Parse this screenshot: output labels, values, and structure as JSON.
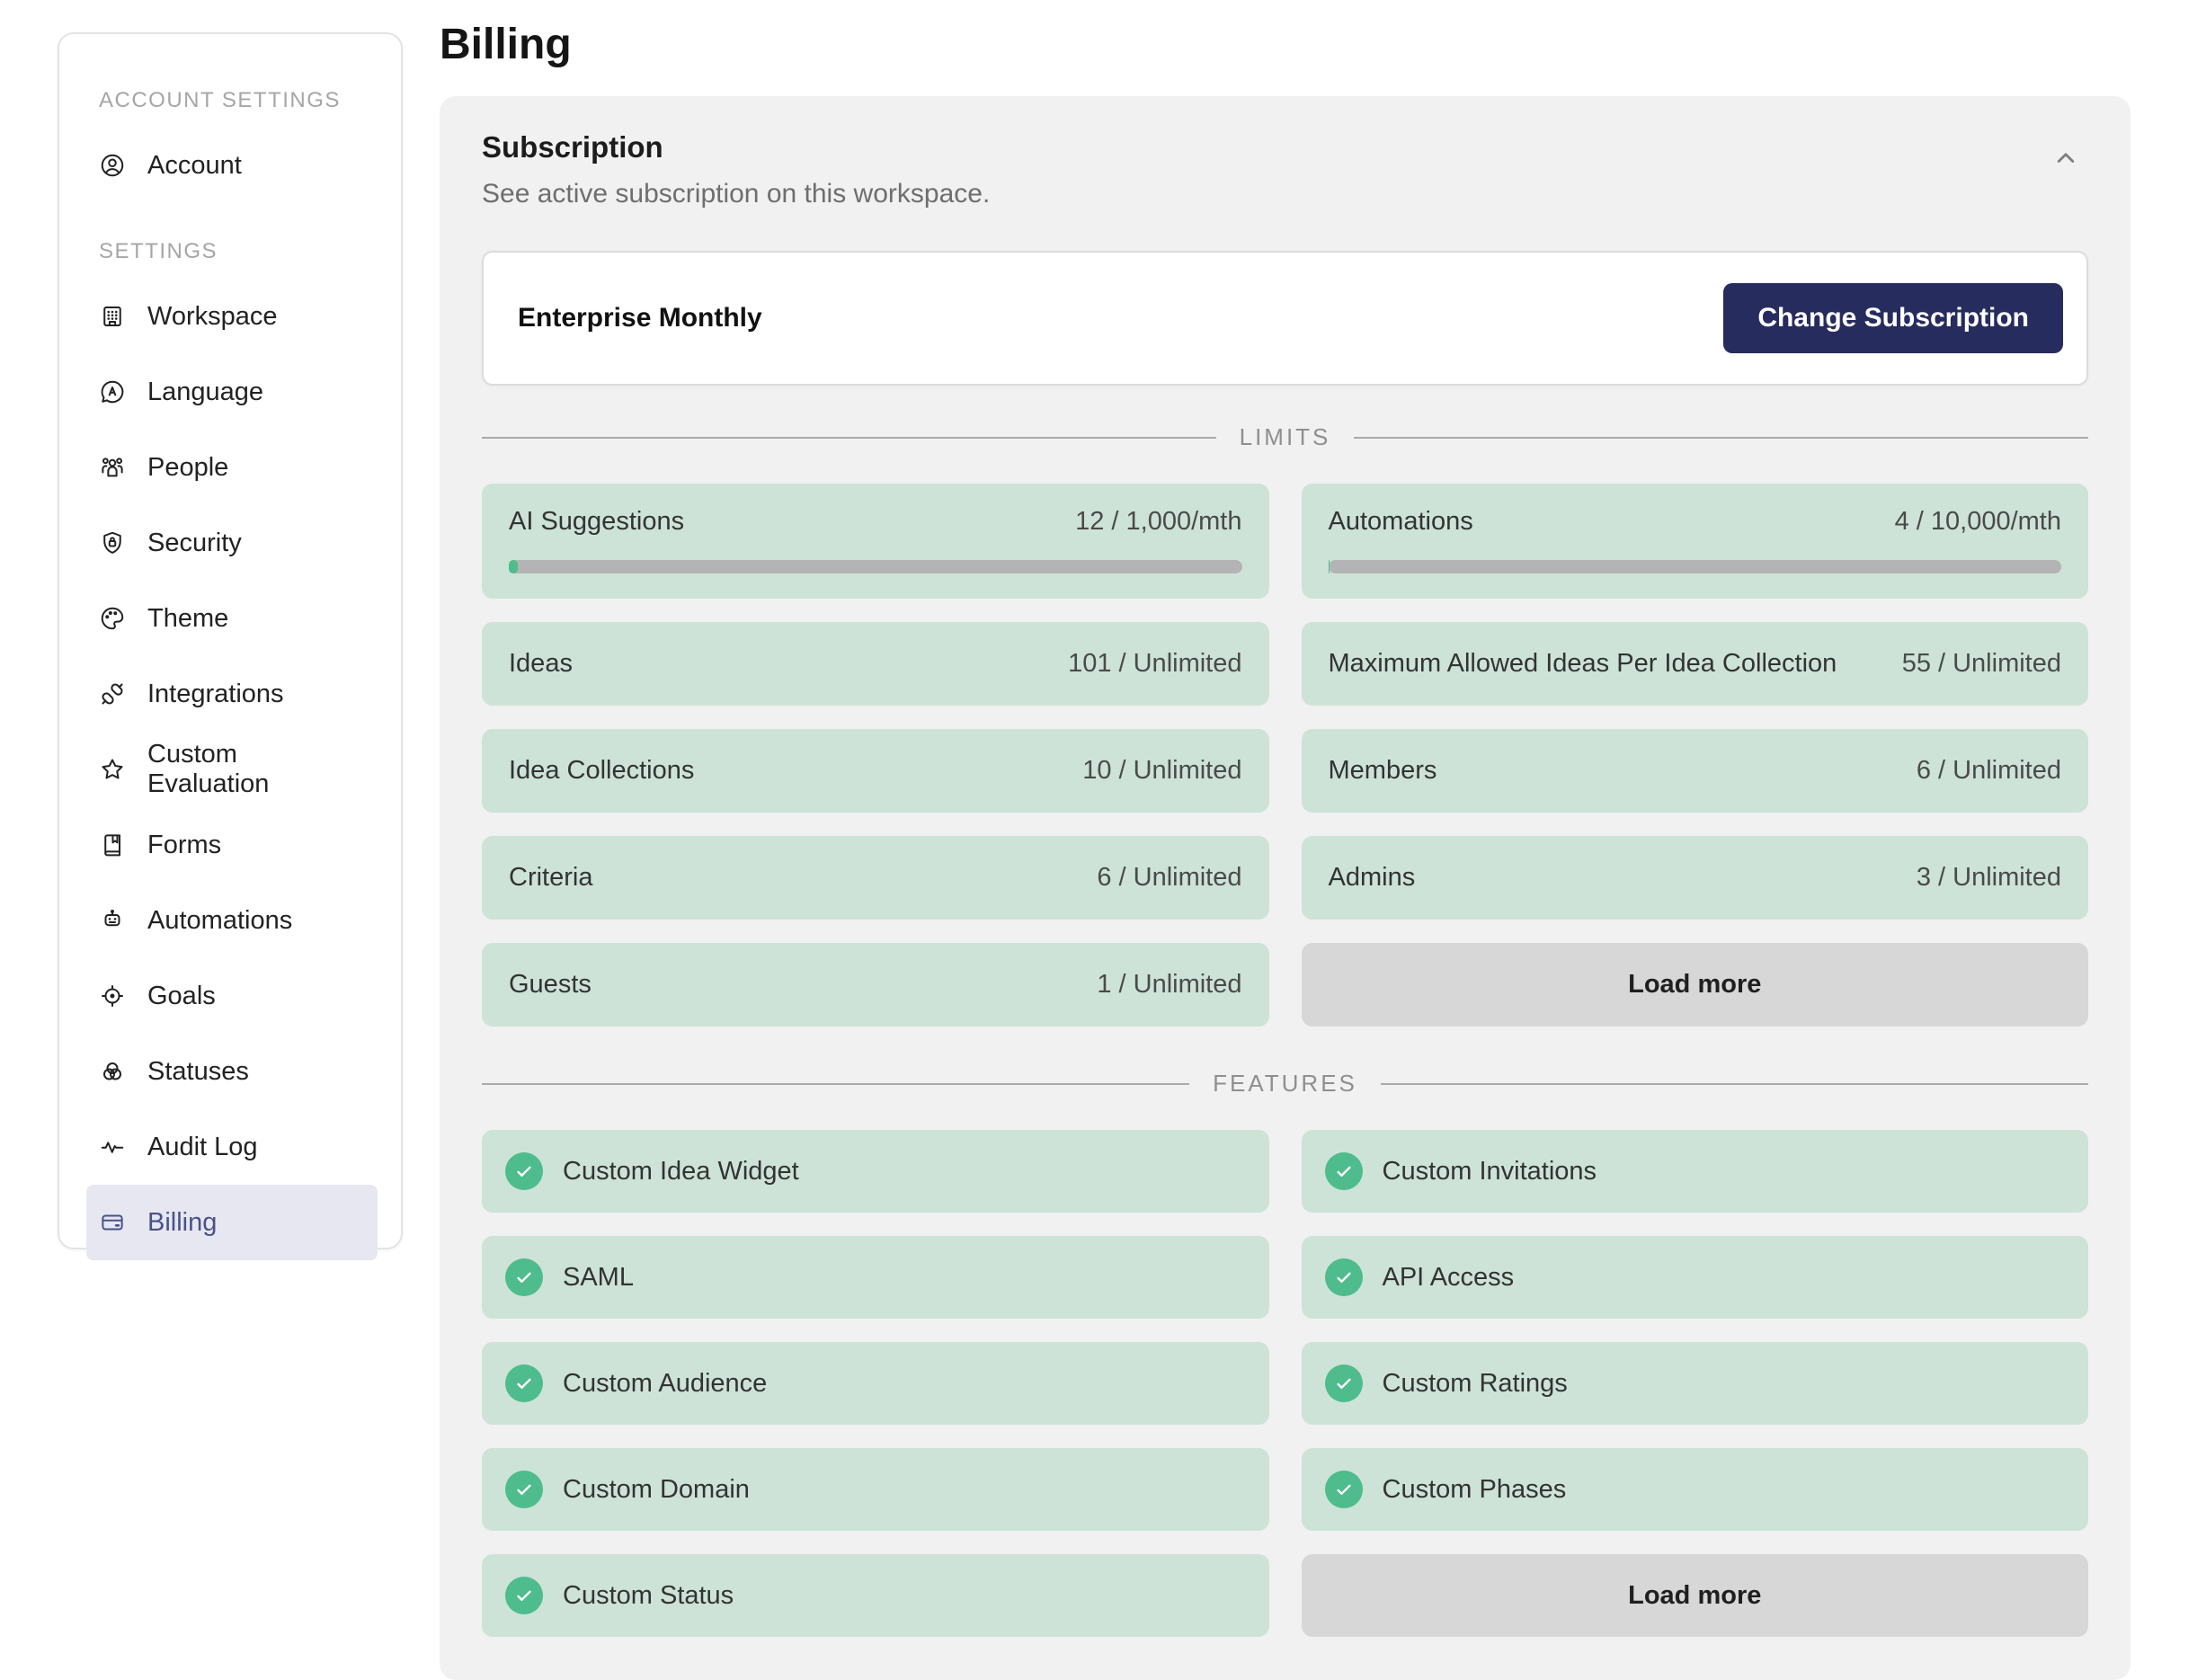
{
  "page_title": "Billing",
  "sidebar": {
    "sections": [
      {
        "label": "ACCOUNT SETTINGS",
        "items": [
          {
            "label": "Account",
            "icon": "account-icon",
            "active": false
          }
        ]
      },
      {
        "label": "SETTINGS",
        "items": [
          {
            "label": "Workspace",
            "icon": "workspace-icon",
            "active": false
          },
          {
            "label": "Language",
            "icon": "language-icon",
            "active": false
          },
          {
            "label": "People",
            "icon": "people-icon",
            "active": false
          },
          {
            "label": "Security",
            "icon": "security-icon",
            "active": false
          },
          {
            "label": "Theme",
            "icon": "theme-icon",
            "active": false
          },
          {
            "label": "Integrations",
            "icon": "integrations-icon",
            "active": false
          },
          {
            "label": "Custom Evaluation",
            "icon": "star-icon",
            "active": false
          },
          {
            "label": "Forms",
            "icon": "forms-icon",
            "active": false
          },
          {
            "label": "Automations",
            "icon": "robot-icon",
            "active": false
          },
          {
            "label": "Goals",
            "icon": "target-icon",
            "active": false
          },
          {
            "label": "Statuses",
            "icon": "statuses-icon",
            "active": false
          },
          {
            "label": "Audit Log",
            "icon": "pulse-icon",
            "active": false
          },
          {
            "label": "Billing",
            "icon": "credit-card-icon",
            "active": true
          }
        ]
      }
    ]
  },
  "subscription": {
    "title": "Subscription",
    "description": "See active subscription on this workspace.",
    "collapse_icon": "chevron-up-icon",
    "plan_name": "Enterprise Monthly",
    "change_button_label": "Change Subscription"
  },
  "limits": {
    "section_label": "LIMITS",
    "items": [
      {
        "name": "AI Suggestions",
        "value": "12 / 1,000/mth",
        "has_progress": true,
        "progress_percent": 1.2
      },
      {
        "name": "Automations",
        "value": "4 / 10,000/mth",
        "has_progress": true,
        "progress_percent": 0.04
      },
      {
        "name": "Ideas",
        "value": "101 / Unlimited",
        "has_progress": false
      },
      {
        "name": "Maximum Allowed Ideas Per Idea Collection",
        "value": "55 / Unlimited",
        "has_progress": false
      },
      {
        "name": "Idea Collections",
        "value": "10 / Unlimited",
        "has_progress": false
      },
      {
        "name": "Members",
        "value": "6 / Unlimited",
        "has_progress": false
      },
      {
        "name": "Criteria",
        "value": "6 / Unlimited",
        "has_progress": false
      },
      {
        "name": "Admins",
        "value": "3 / Unlimited",
        "has_progress": false
      },
      {
        "name": "Guests",
        "value": "1 / Unlimited",
        "has_progress": false
      }
    ],
    "load_more_label": "Load more"
  },
  "features": {
    "section_label": "FEATURES",
    "check_icon": "check-icon",
    "items": [
      {
        "label": "Custom Idea Widget"
      },
      {
        "label": "Custom Invitations"
      },
      {
        "label": "SAML"
      },
      {
        "label": "API Access"
      },
      {
        "label": "Custom Audience"
      },
      {
        "label": "Custom Ratings"
      },
      {
        "label": "Custom Domain"
      },
      {
        "label": "Custom Phases"
      },
      {
        "label": "Custom Status"
      }
    ],
    "load_more_label": "Load more"
  },
  "colors": {
    "brand_navy": "#272c5f",
    "success_green": "#4ebc8c",
    "limit_card_green": "#cde3d7",
    "sidebar_active_bg": "#e7e7f2",
    "sidebar_active_text": "#4a5286",
    "panel_background": "#f1f1f1"
  }
}
